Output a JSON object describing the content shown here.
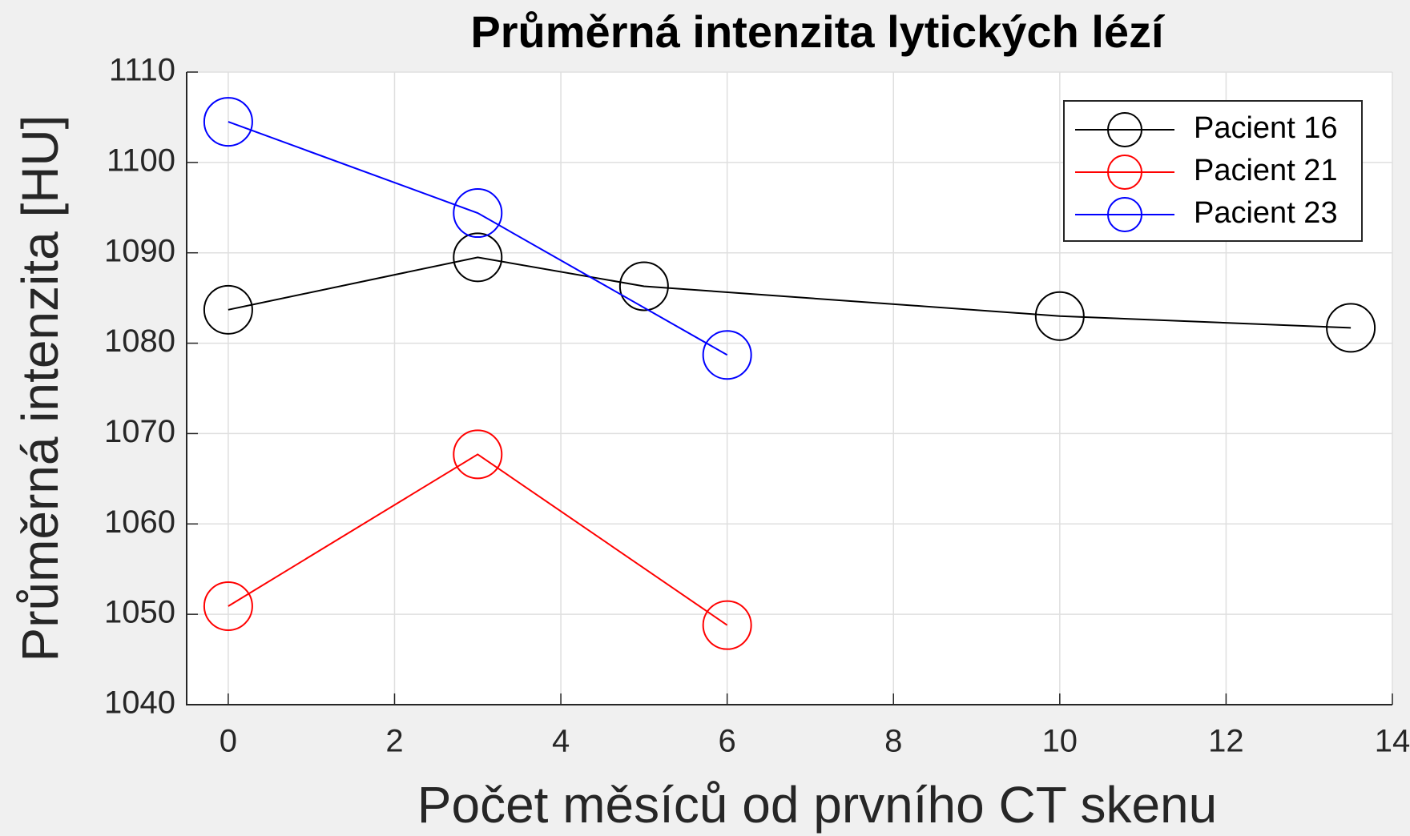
{
  "chart_data": {
    "type": "line",
    "title": "Průměrná intenzita lytických lézí",
    "xlabel": "Počet měsíců od prvního CT skenu",
    "ylabel": "Průměrná intenzita [HU]",
    "series": [
      {
        "name": "Pacient 16",
        "color": "#000000",
        "x": [
          0,
          3,
          5,
          10,
          13.5
        ],
        "values": [
          1083.7,
          1089.5,
          1086.3,
          1083.0,
          1081.7
        ]
      },
      {
        "name": "Pacient 21",
        "color": "#ff0000",
        "x": [
          0,
          3,
          6
        ],
        "values": [
          1050.9,
          1067.7,
          1048.8
        ]
      },
      {
        "name": "Pacient 23",
        "color": "#0000ff",
        "x": [
          0,
          3,
          6
        ],
        "values": [
          1104.5,
          1094.4,
          1078.7
        ]
      }
    ],
    "xlim": [
      -0.5,
      14
    ],
    "xticks": [
      0,
      2,
      4,
      6,
      8,
      10,
      12,
      14
    ],
    "ylim": [
      1040,
      1110
    ],
    "yticks": [
      1040,
      1050,
      1060,
      1070,
      1080,
      1090,
      1100,
      1110
    ],
    "grid": true,
    "legend": "northeast",
    "marker": "circle"
  }
}
